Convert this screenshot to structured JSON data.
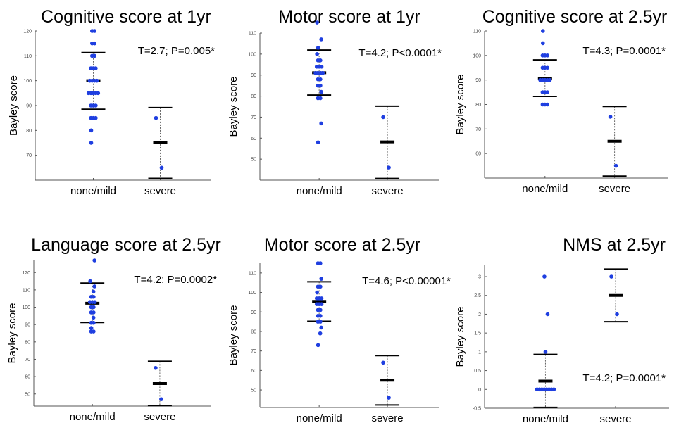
{
  "figure": {
    "ylabel": "Bayley score"
  },
  "colors": {
    "point": "#1f3fe0",
    "axis": "#555555",
    "mean": "#000000",
    "errorbar": "#000000",
    "stem": "#666666"
  },
  "chart_data": [
    {
      "type": "scatter",
      "title": "Cognitive score at 1yr",
      "ylabel": "Bayley score",
      "categories": [
        "none/mild",
        "severe"
      ],
      "ylim": [
        60,
        120
      ],
      "yticks": [
        70,
        80,
        90,
        100,
        110,
        120
      ],
      "annotation": "T=2.7; P=0.005*",
      "annotation_position": "top-right",
      "groups": [
        {
          "name": "none/mild",
          "mean": 100,
          "upper": 111.3,
          "lower": 88.5,
          "points": [
            120,
            120,
            115,
            115,
            110,
            110,
            105,
            105,
            105,
            100,
            100,
            100,
            100,
            95,
            95,
            95,
            95,
            95,
            90,
            90,
            90,
            85,
            85,
            85,
            80,
            75
          ]
        },
        {
          "name": "severe",
          "mean": 75,
          "upper": 89.2,
          "lower": 60.7,
          "points": [
            85,
            65
          ]
        }
      ]
    },
    {
      "type": "scatter",
      "title": "Motor score at 1yr",
      "ylabel": "Bayley score",
      "categories": [
        "none/mild",
        "severe"
      ],
      "ylim": [
        40,
        110
      ],
      "yticks": [
        50,
        60,
        70,
        80,
        90,
        100,
        110
      ],
      "annotation": "T=4.2; P<0.0001*",
      "annotation_position": "top-right",
      "groups": [
        {
          "name": "none/mild",
          "mean": 91.1,
          "upper": 101.9,
          "lower": 80.5,
          "points": [
            115,
            107,
            103,
            100,
            97,
            97,
            94,
            94,
            94,
            91,
            91,
            91,
            91,
            88,
            88,
            85,
            85,
            82,
            79,
            79,
            67,
            58
          ]
        },
        {
          "name": "severe",
          "mean": 58.2,
          "upper": 75.2,
          "lower": 40.8,
          "points": [
            70,
            46
          ]
        }
      ]
    },
    {
      "type": "scatter",
      "title": "Cognitive score at 2.5yr",
      "ylabel": "Bayley score",
      "categories": [
        "none/mild",
        "severe"
      ],
      "ylim": [
        50,
        110
      ],
      "yticks": [
        60,
        70,
        80,
        90,
        100,
        110
      ],
      "annotation": "T=4.3; P=0.0001*",
      "annotation_position": "top-right",
      "groups": [
        {
          "name": "none/mild",
          "mean": 90.7,
          "upper": 98.2,
          "lower": 83.3,
          "points": [
            110,
            105,
            100,
            100,
            100,
            95,
            95,
            95,
            90,
            90,
            90,
            90,
            90,
            85,
            85,
            85,
            80,
            80,
            80
          ]
        },
        {
          "name": "severe",
          "mean": 65,
          "upper": 79.2,
          "lower": 50.8,
          "points": [
            75,
            55
          ]
        }
      ]
    },
    {
      "type": "scatter",
      "title": "Language score at 2.5yr",
      "ylabel": "Bayley score",
      "categories": [
        "none/mild",
        "severe"
      ],
      "ylim": [
        43,
        127
      ],
      "yticks": [
        50,
        60,
        70,
        80,
        90,
        100,
        110,
        120
      ],
      "annotation": "T=4.2; P=0.0002*",
      "annotation_position": "top-right",
      "groups": [
        {
          "name": "none/mild",
          "mean": 102.3,
          "upper": 113.9,
          "lower": 91.2,
          "points": [
            127,
            115,
            112,
            109,
            106,
            106,
            103,
            103,
            103,
            100,
            100,
            97,
            97,
            94,
            91,
            91,
            88,
            86,
            86
          ]
        },
        {
          "name": "severe",
          "mean": 56,
          "upper": 68.8,
          "lower": 43.3,
          "points": [
            65,
            47
          ]
        }
      ]
    },
    {
      "type": "scatter",
      "title": "Motor score at 2.5yr",
      "ylabel": "Bayley score",
      "categories": [
        "none/mild",
        "severe"
      ],
      "ylim": [
        41,
        115
      ],
      "yticks": [
        50,
        60,
        70,
        80,
        90,
        100,
        110
      ],
      "annotation": "T=4.6; P<0.00001*",
      "annotation_position": "top-right",
      "groups": [
        {
          "name": "none/mild",
          "mean": 95.4,
          "upper": 105.5,
          "lower": 85.2,
          "points": [
            115,
            115,
            107,
            103,
            103,
            100,
            97,
            97,
            97,
            94,
            94,
            94,
            91,
            91,
            88,
            88,
            85,
            85,
            82,
            79,
            73
          ]
        },
        {
          "name": "severe",
          "mean": 55,
          "upper": 67.6,
          "lower": 42.3,
          "points": [
            64,
            46
          ]
        }
      ]
    },
    {
      "type": "scatter",
      "title": "NMS at 2.5yr",
      "ylabel": "Bayley score",
      "categories": [
        "none/mild",
        "severe"
      ],
      "ylim": [
        -0.5,
        3.3
      ],
      "yticks": [
        -0.5,
        0,
        0.5,
        1,
        1.5,
        2,
        2.5,
        3
      ],
      "annotation": "T=4.2; P=0.0001*",
      "annotation_position": "bottom-right",
      "groups": [
        {
          "name": "none/mild",
          "mean": 0.22,
          "upper": 0.93,
          "lower": -0.48,
          "points": [
            3,
            2,
            1,
            0,
            0,
            0,
            0,
            0,
            0,
            0,
            0
          ]
        },
        {
          "name": "severe",
          "mean": 2.5,
          "upper": 3.2,
          "lower": 1.8,
          "points": [
            3,
            2
          ]
        }
      ]
    }
  ]
}
